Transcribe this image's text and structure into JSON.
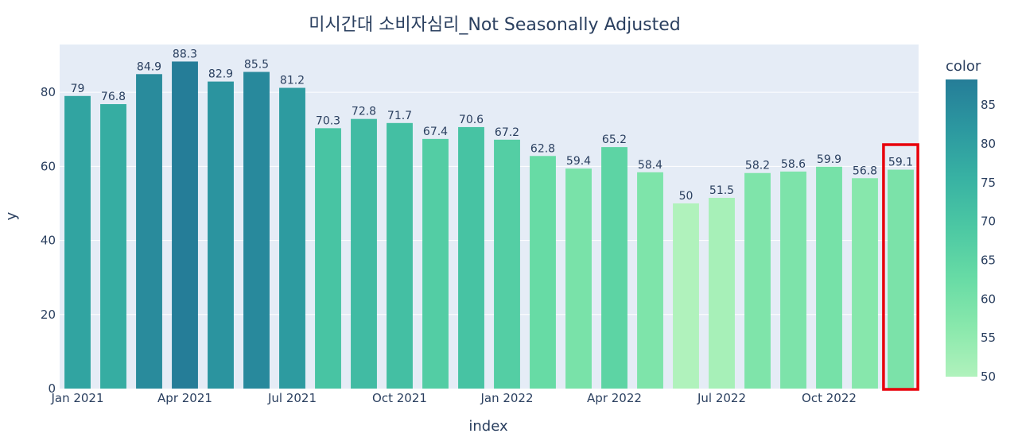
{
  "chart_data": {
    "type": "bar",
    "title": "미시간대 소비자심리_Not Seasonally Adjusted",
    "xlabel": "index",
    "ylabel": "y",
    "ylim": [
      0,
      92.9
    ],
    "yticks": [
      0,
      20,
      40,
      60,
      80
    ],
    "grid": true,
    "categories": [
      "2021-01",
      "2021-02",
      "2021-03",
      "2021-04",
      "2021-05",
      "2021-06",
      "2021-07",
      "2021-08",
      "2021-09",
      "2021-10",
      "2021-11",
      "2021-12",
      "2022-01",
      "2022-02",
      "2022-03",
      "2022-04",
      "2022-05",
      "2022-06",
      "2022-07",
      "2022-08",
      "2022-09",
      "2022-10",
      "2022-11",
      "2022-12"
    ],
    "xtick_labels": [
      "Jan 2021",
      "Apr 2021",
      "Jul 2021",
      "Oct 2021",
      "Jan 2022",
      "Apr 2022",
      "Jul 2022",
      "Oct 2022"
    ],
    "xtick_categories": [
      "2021-01",
      "2021-04",
      "2021-07",
      "2021-10",
      "2022-01",
      "2022-04",
      "2022-07",
      "2022-10"
    ],
    "values": [
      79,
      76.8,
      84.9,
      88.3,
      82.9,
      85.5,
      81.2,
      70.3,
      72.8,
      71.7,
      67.4,
      70.6,
      67.2,
      62.8,
      59.4,
      65.2,
      58.4,
      50,
      51.5,
      58.2,
      58.6,
      59.9,
      56.8,
      59.1
    ],
    "data_labels": [
      "79",
      "76.8",
      "84.9",
      "88.3",
      "82.9",
      "85.5",
      "81.2",
      "70.3",
      "72.8",
      "71.7",
      "67.4",
      "70.6",
      "67.2",
      "62.8",
      "59.4",
      "65.2",
      "58.4",
      "50",
      "51.5",
      "58.2",
      "58.6",
      "59.9",
      "56.8",
      "59.1"
    ],
    "highlight_index": 23,
    "highlight_color": "#e8000b",
    "colorbar": {
      "title": "color",
      "range": [
        50,
        88.3
      ],
      "ticks": [
        50,
        55,
        60,
        65,
        70,
        75,
        80,
        85
      ],
      "colors": [
        "#b0f2bc",
        "#89e8ac",
        "#67dba5",
        "#4cc8a3",
        "#38b2a3",
        "#2c98a0",
        "#257d98"
      ]
    },
    "background_color": "#e5ecf6"
  }
}
